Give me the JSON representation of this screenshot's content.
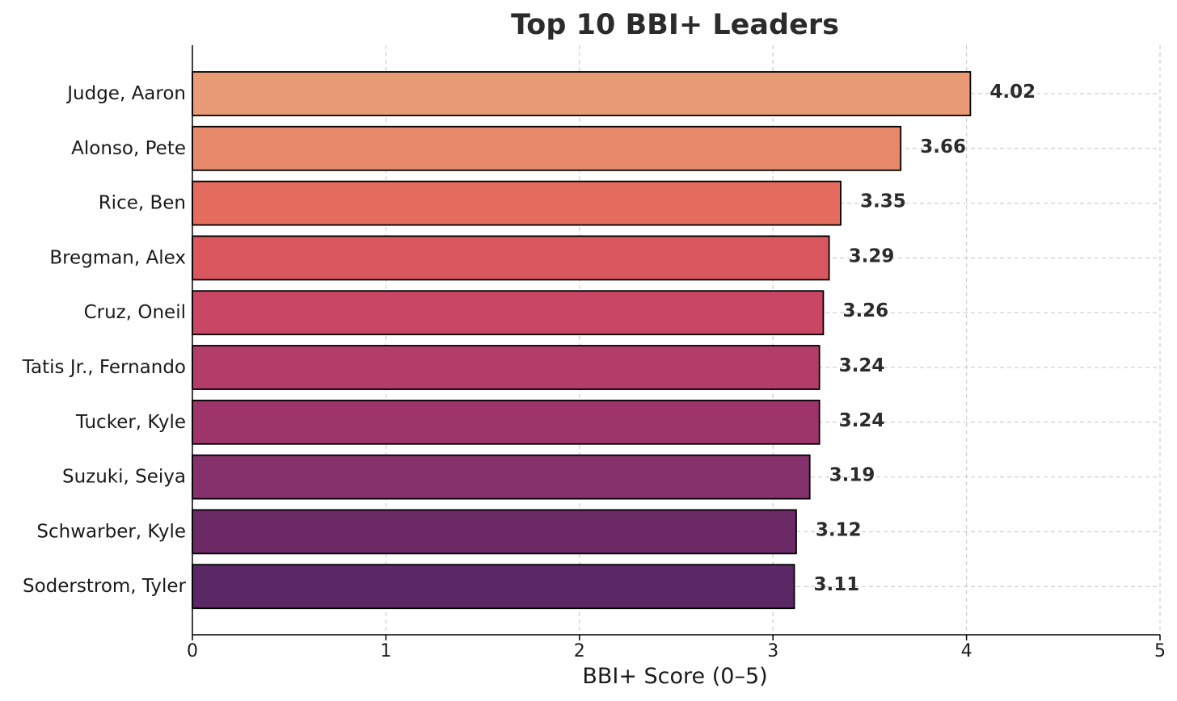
{
  "chart_data": {
    "type": "bar",
    "orientation": "horizontal",
    "title": "Top 10 BBI+ Leaders",
    "xlabel": "BBI+ Score (0–5)",
    "ylabel": "",
    "xlim": [
      0,
      5
    ],
    "xticks": [
      0,
      1,
      2,
      3,
      4,
      5
    ],
    "grid": true,
    "categories": [
      "Judge, Aaron",
      "Alonso, Pete",
      "Rice, Ben",
      "Bregman, Alex",
      "Cruz, Oneil",
      "Tatis Jr., Fernando",
      "Tucker, Kyle",
      "Suzuki, Seiya",
      "Schwarber, Kyle",
      "Soderstrom, Tyler"
    ],
    "values": [
      4.02,
      3.66,
      3.35,
      3.29,
      3.26,
      3.24,
      3.24,
      3.19,
      3.12,
      3.11
    ],
    "value_labels": [
      "4.02",
      "3.66",
      "3.35",
      "3.29",
      "3.26",
      "3.24",
      "3.24",
      "3.19",
      "3.12",
      "3.11"
    ],
    "colors": [
      "#e99b76",
      "#e78a6c",
      "#e36c5f",
      "#d9585f",
      "#c94664",
      "#b33d69",
      "#9d356a",
      "#85316b",
      "#6b2a65",
      "#5b2865"
    ]
  }
}
